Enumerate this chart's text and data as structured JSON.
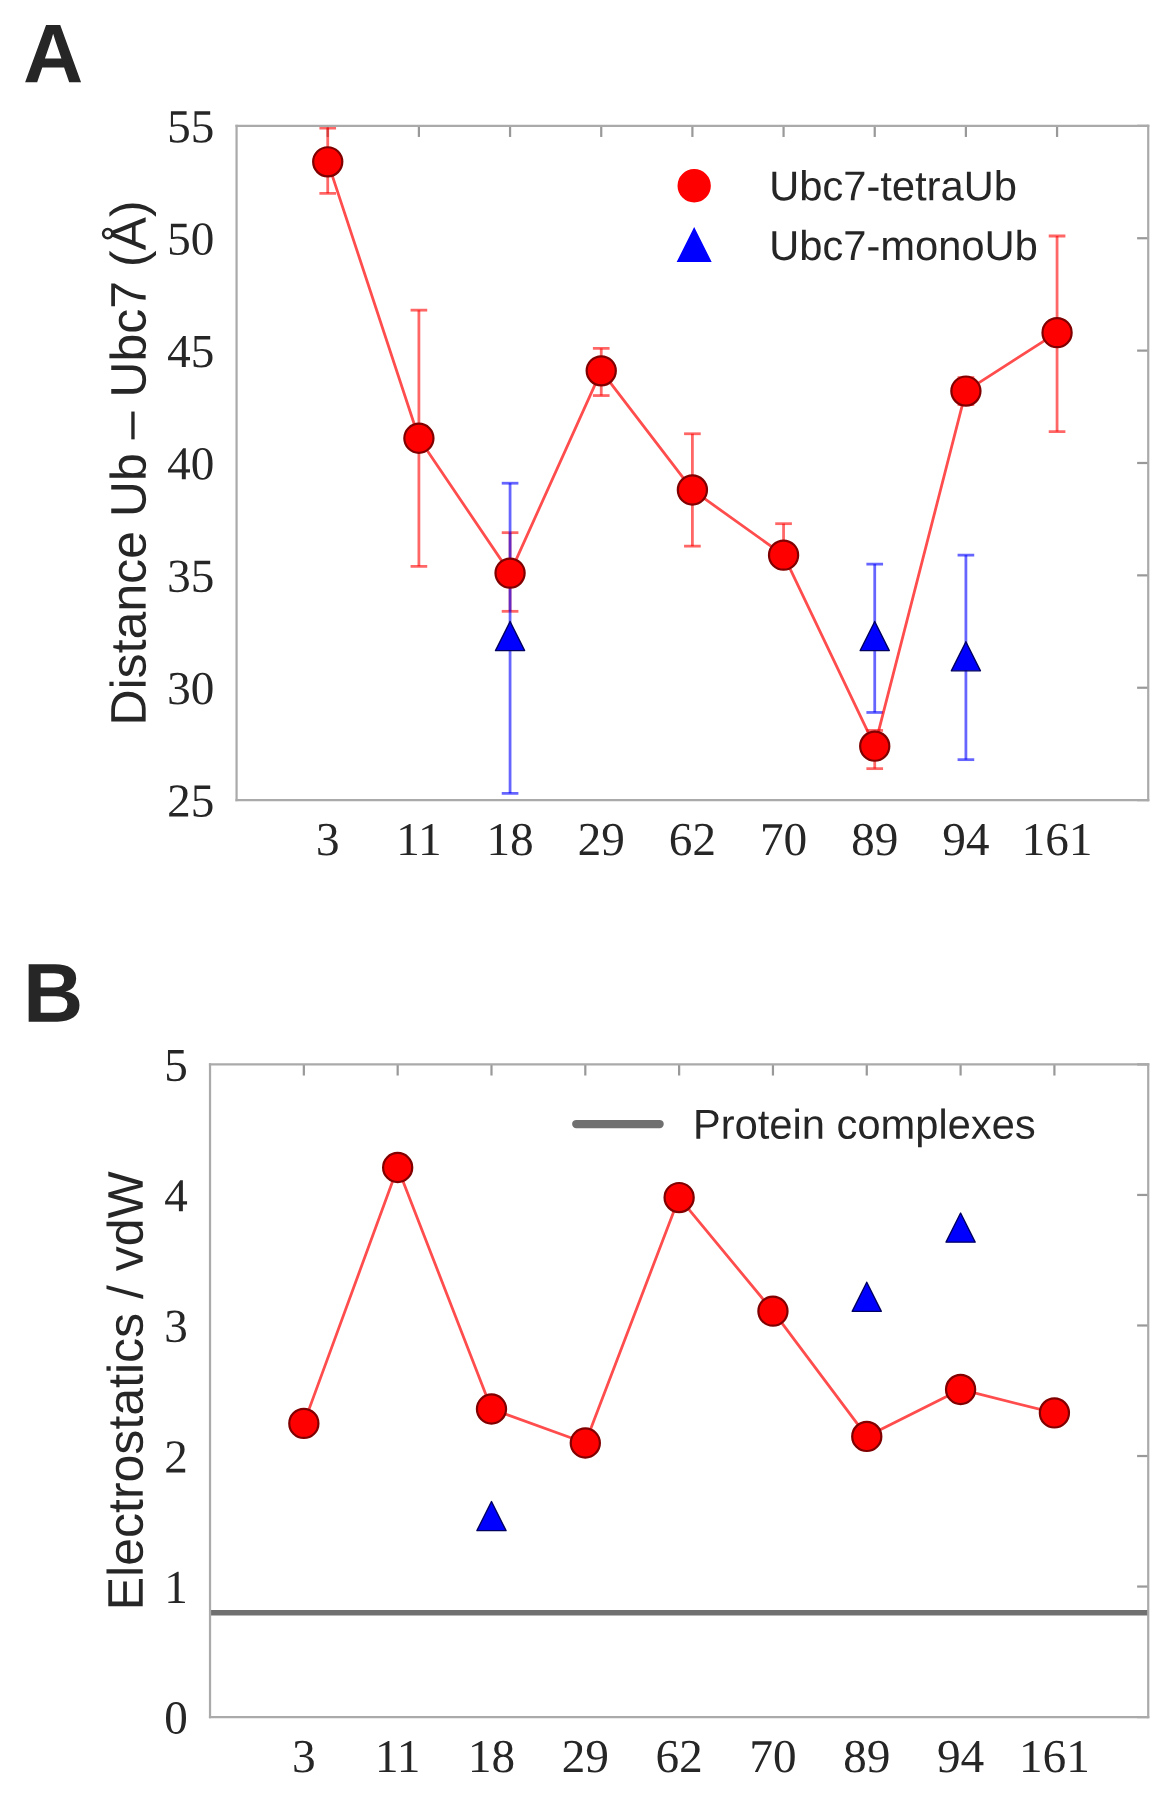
{
  "chart_data": [
    {
      "type": "line",
      "title": "A",
      "ylabel": "Distance Ub – Ubc7 (Å)",
      "categories": [
        "3",
        "11",
        "18",
        "29",
        "62",
        "70",
        "89",
        "94",
        "161"
      ],
      "ylim": [
        25,
        55
      ],
      "yticks": [
        25,
        30,
        35,
        40,
        45,
        50,
        55
      ],
      "legend": "top right",
      "series": [
        {
          "name": "Ubc7-tetraUb",
          "marker": "circle",
          "color": "#ff0000",
          "values": [
            53.4,
            41.1,
            35.1,
            44.1,
            38.8,
            35.9,
            27.4,
            43.2,
            45.8
          ],
          "errors": [
            [
              52.0,
              54.9
            ],
            [
              35.4,
              46.8
            ],
            [
              33.4,
              36.9
            ],
            [
              43.0,
              45.1
            ],
            [
              36.3,
              41.3
            ],
            [
              35.5,
              37.3
            ],
            [
              26.4,
              28.1
            ],
            [
              42.6,
              43.8
            ],
            [
              41.4,
              50.1
            ]
          ]
        },
        {
          "name": "Ubc7-monoUb",
          "type": "scatter",
          "marker": "triangle",
          "color": "#0000ff",
          "values": [
            null,
            null,
            32.3,
            null,
            null,
            null,
            32.3,
            31.4,
            null
          ],
          "errors": [
            null,
            null,
            [
              25.3,
              39.1
            ],
            null,
            null,
            null,
            [
              28.9,
              35.5
            ],
            [
              26.8,
              35.9
            ],
            null
          ]
        }
      ]
    },
    {
      "type": "line",
      "title": "B",
      "ylabel": "Electrostatics / vdW",
      "categories": [
        "3",
        "11",
        "18",
        "29",
        "62",
        "70",
        "89",
        "94",
        "161"
      ],
      "ylim": [
        0,
        5
      ],
      "yticks": [
        0,
        1,
        2,
        3,
        4,
        5
      ],
      "legend": "top right",
      "series": [
        {
          "marker": "circle",
          "color": "#ff0000",
          "values": [
            2.25,
            4.21,
            2.36,
            2.1,
            3.98,
            3.11,
            2.15,
            2.51,
            2.33
          ]
        },
        {
          "type": "scatter",
          "marker": "triangle",
          "color": "#0000ff",
          "values": [
            null,
            null,
            1.54,
            null,
            null,
            null,
            3.22,
            3.75,
            null
          ]
        }
      ],
      "ref_lines": [
        {
          "axis": "y",
          "value": 0.8,
          "label": "Protein complexes",
          "color": "#707070"
        }
      ]
    }
  ]
}
